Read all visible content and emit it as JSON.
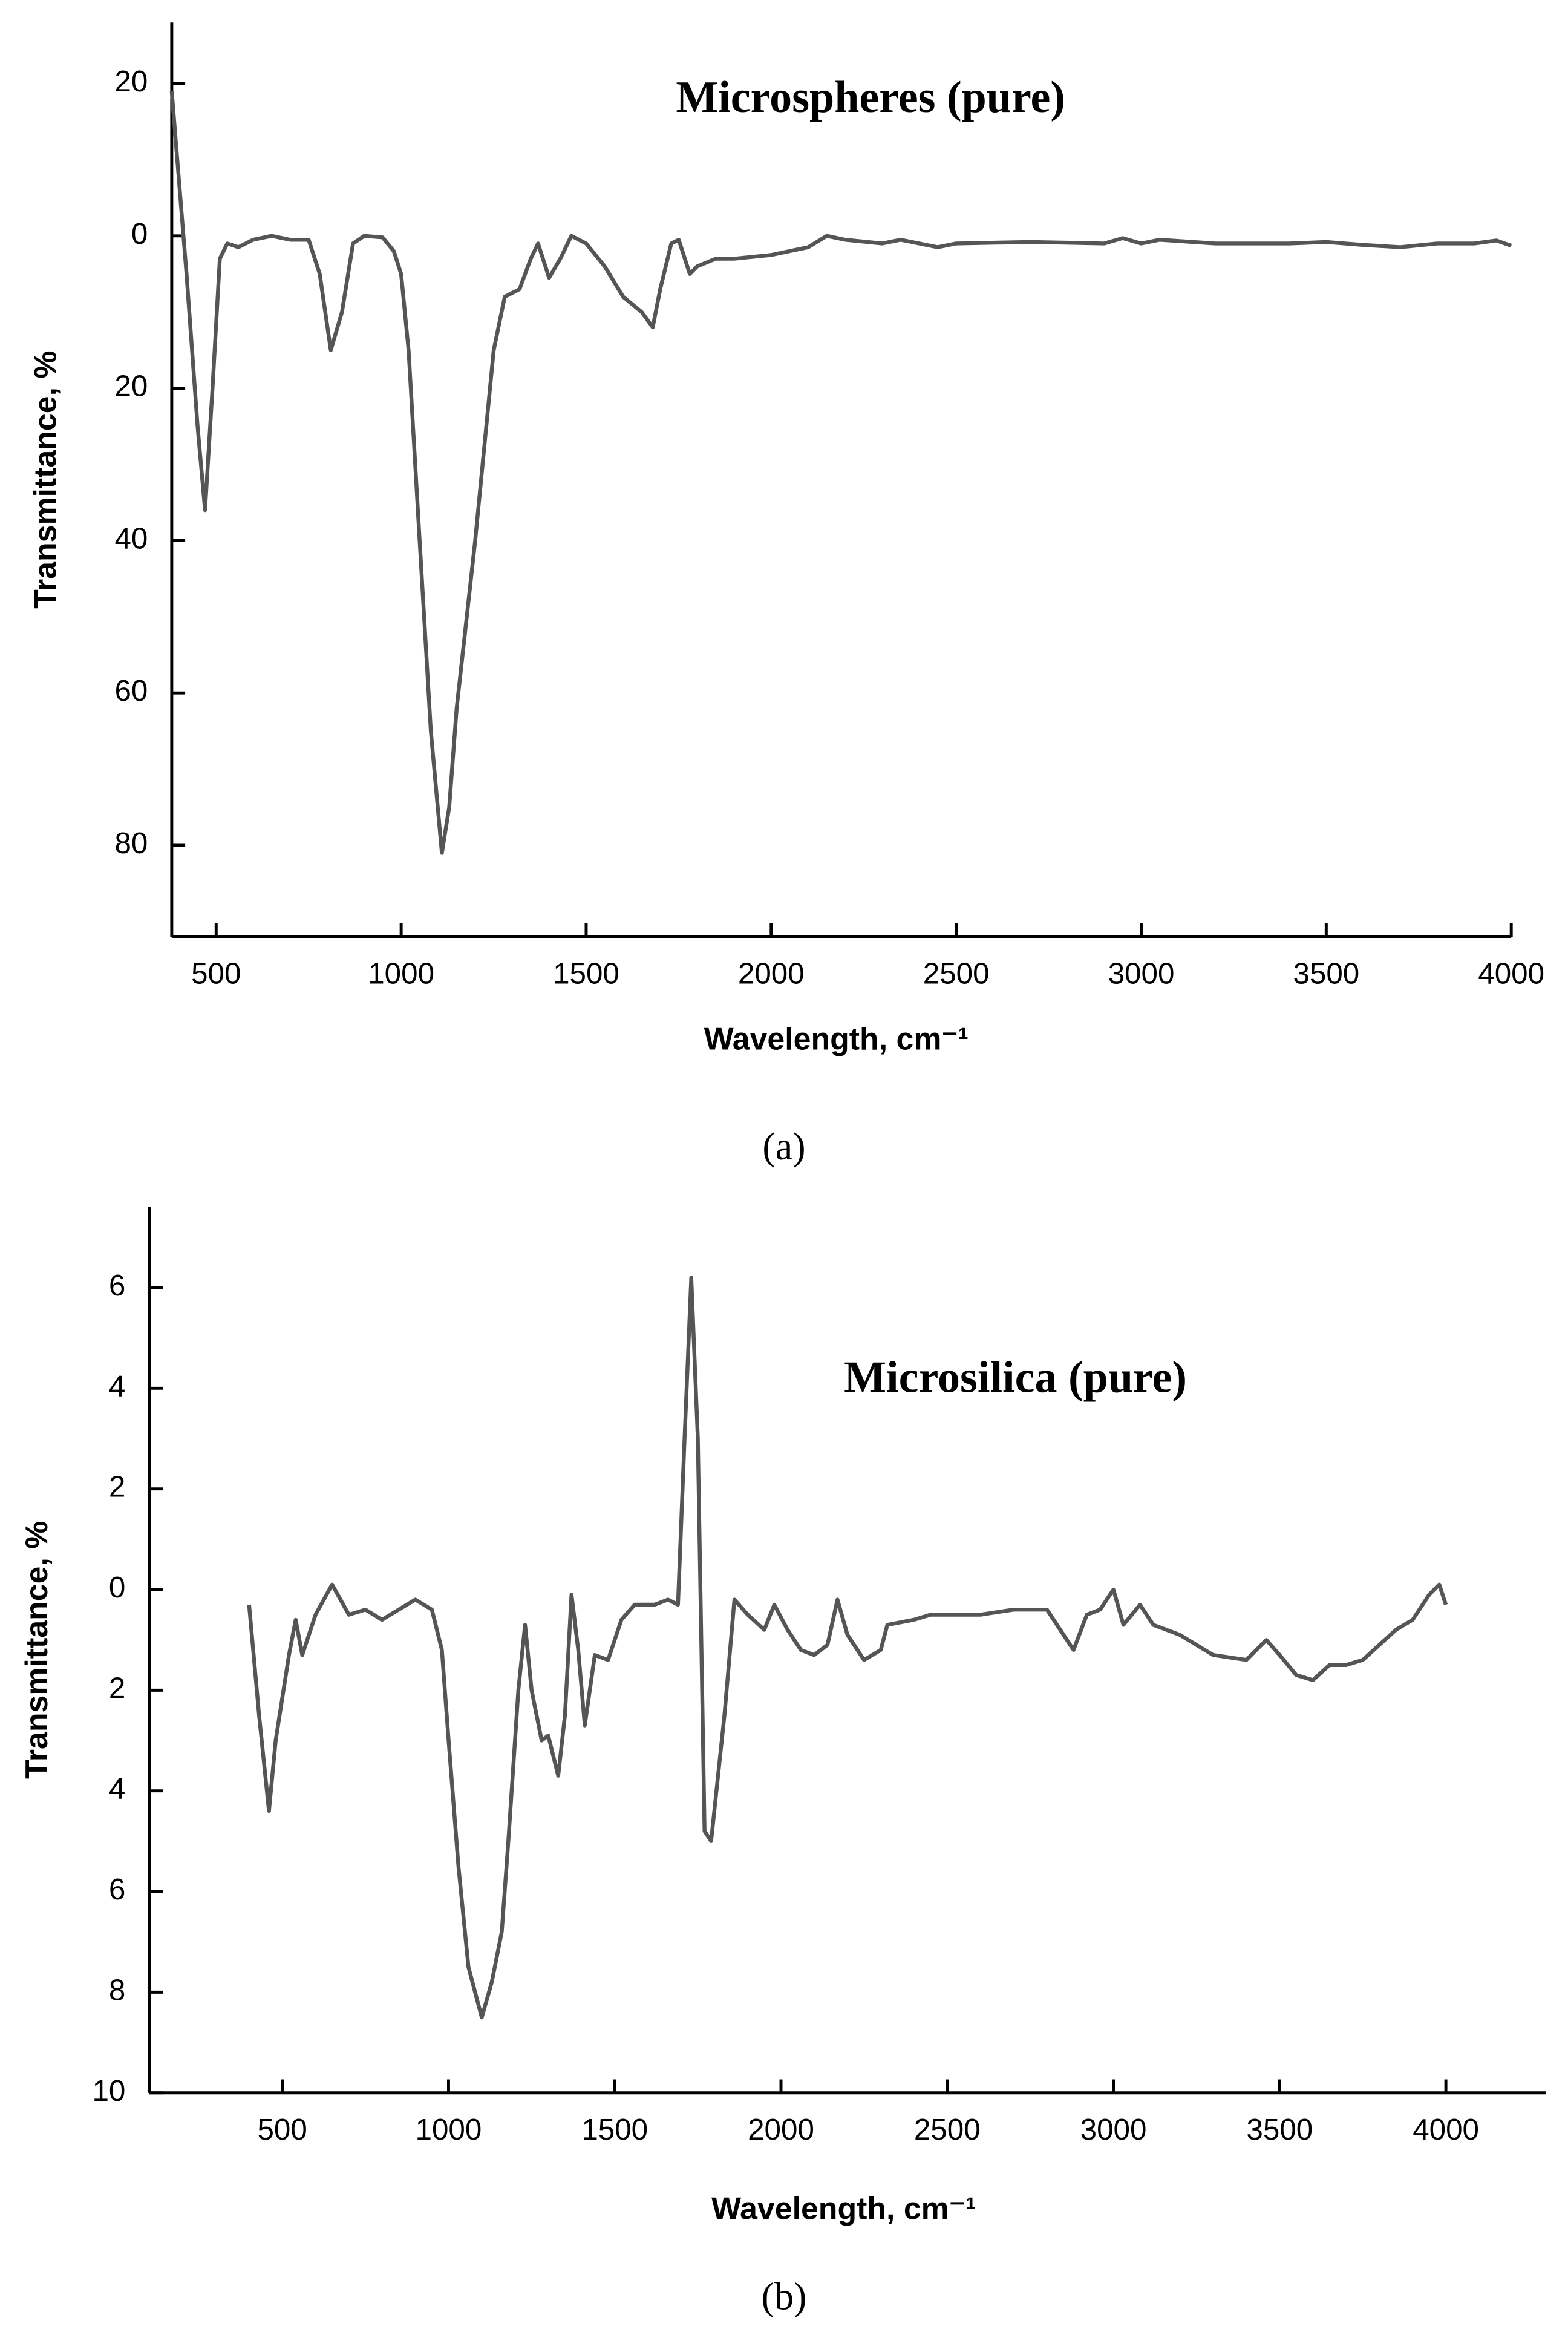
{
  "chart_data": [
    {
      "type": "line",
      "title": "Microspheres (pure)",
      "xlabel": "Wavelength, cm⁻¹",
      "ylabel": "Transmittance, %",
      "caption": "(a)",
      "xlim": [
        380,
        4000
      ],
      "xticks": [
        500,
        1000,
        1500,
        2000,
        2500,
        3000,
        3500,
        4000
      ],
      "ylim": [
        92,
        -28
      ],
      "yticks": [
        {
          "value": -20,
          "label": "20"
        },
        0,
        20,
        40,
        60,
        80
      ],
      "series": [
        {
          "color": "#555555",
          "x": [
            380,
            420,
            450,
            470,
            490,
            510,
            530,
            560,
            600,
            650,
            700,
            750,
            780,
            810,
            840,
            870,
            900,
            950,
            980,
            1000,
            1020,
            1050,
            1080,
            1110,
            1130,
            1150,
            1200,
            1250,
            1280,
            1320,
            1350,
            1370,
            1400,
            1430,
            1460,
            1500,
            1550,
            1600,
            1650,
            1680,
            1700,
            1730,
            1750,
            1780,
            1800,
            1850,
            1900,
            2000,
            2100,
            2150,
            2200,
            2300,
            2350,
            2450,
            2500,
            2700,
            2900,
            2950,
            3000,
            3050,
            3200,
            3400,
            3500,
            3600,
            3700,
            3800,
            3900,
            3960,
            4000
          ],
          "values": [
            -19,
            5,
            25,
            36,
            20,
            3,
            1,
            1.5,
            0.5,
            0,
            0.5,
            0.5,
            5,
            15,
            10,
            1,
            0,
            0.2,
            2,
            5,
            15,
            40,
            65,
            81,
            75,
            62,
            40,
            15,
            8,
            7,
            3,
            1,
            5.5,
            3,
            0,
            1,
            4,
            8,
            10,
            12,
            7,
            1,
            0.5,
            5,
            4,
            3,
            3,
            2.5,
            1.5,
            0,
            0.5,
            1,
            0.5,
            1.5,
            1,
            0.8,
            1,
            0.3,
            1,
            0.5,
            1,
            1,
            0.8,
            1.2,
            1.5,
            1,
            1,
            0.6,
            1.3
          ]
        }
      ]
    },
    {
      "type": "line",
      "title": "Microsilica (pure)",
      "xlabel": "Wavelength, cm⁻¹",
      "ylabel": "Transmittance, %",
      "caption": "(b)",
      "xlim": [
        100,
        4300
      ],
      "xticks": [
        500,
        1000,
        1500,
        2000,
        2500,
        3000,
        3500,
        4000
      ],
      "ylim": [
        10,
        -7.6
      ],
      "yticks": [
        {
          "value": -6,
          "label": "6"
        },
        {
          "value": -4,
          "label": "4"
        },
        {
          "value": -2,
          "label": "2"
        },
        0,
        2,
        4,
        6,
        8,
        10
      ],
      "series": [
        {
          "color": "#555555",
          "x": [
            400,
            430,
            460,
            480,
            520,
            540,
            560,
            600,
            650,
            700,
            750,
            800,
            850,
            900,
            950,
            980,
            1000,
            1030,
            1060,
            1100,
            1130,
            1160,
            1180,
            1210,
            1230,
            1250,
            1280,
            1300,
            1330,
            1350,
            1370,
            1390,
            1410,
            1440,
            1480,
            1520,
            1560,
            1620,
            1660,
            1690,
            1710,
            1730,
            1750,
            1770,
            1790,
            1830,
            1860,
            1900,
            1950,
            1980,
            2020,
            2060,
            2100,
            2140,
            2170,
            2200,
            2250,
            2300,
            2320,
            2400,
            2450,
            2500,
            2600,
            2700,
            2800,
            2850,
            2880,
            2920,
            2960,
            3000,
            3030,
            3080,
            3120,
            3200,
            3300,
            3400,
            3460,
            3500,
            3550,
            3600,
            3650,
            3700,
            3750,
            3800,
            3850,
            3900,
            3950,
            3980,
            4000
          ],
          "values": [
            0.3,
            2.5,
            4.4,
            3,
            1.3,
            0.6,
            1.3,
            0.5,
            -0.1,
            0.5,
            0.4,
            0.6,
            0.4,
            0.2,
            0.4,
            1.2,
            3,
            5.5,
            7.5,
            8.5,
            7.8,
            6.8,
            5,
            2,
            0.7,
            2,
            3,
            2.9,
            3.7,
            2.5,
            0.1,
            1.2,
            2.7,
            1.3,
            1.4,
            0.6,
            0.3,
            0.3,
            0.2,
            0.3,
            -3,
            -6.2,
            -3,
            4.8,
            5,
            2.5,
            0.2,
            0.5,
            0.8,
            0.3,
            0.8,
            1.2,
            1.3,
            1.1,
            0.2,
            0.9,
            1.4,
            1.2,
            0.7,
            0.6,
            0.5,
            0.5,
            0.5,
            0.4,
            0.4,
            0.9,
            1.2,
            0.5,
            0.4,
            0,
            0.7,
            0.3,
            0.7,
            0.9,
            1.3,
            1.4,
            1,
            1.3,
            1.7,
            1.8,
            1.5,
            1.5,
            1.4,
            1.1,
            0.8,
            0.6,
            0.1,
            -0.1,
            0.3
          ]
        }
      ]
    }
  ]
}
